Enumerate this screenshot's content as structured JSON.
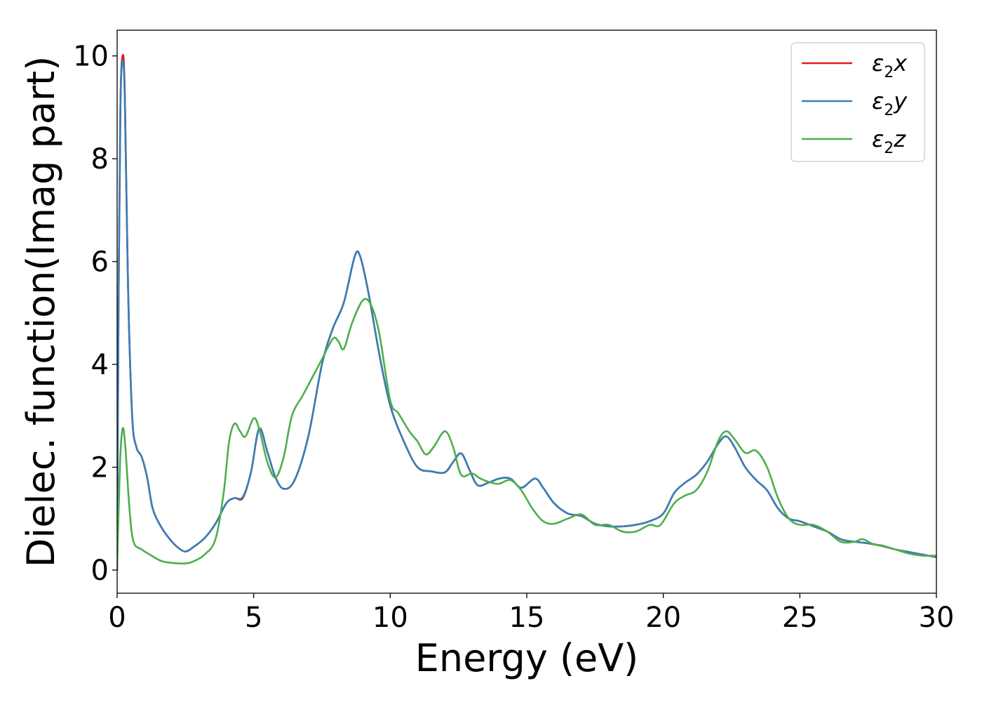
{
  "chart_data": {
    "type": "line",
    "title": "",
    "xlabel": "Energy (eV)",
    "ylabel": "Dielec. function(Imag part)",
    "xlim": [
      0,
      30
    ],
    "ylim": [
      -0.45,
      10.5
    ],
    "xticks": [
      0,
      5,
      10,
      15,
      20,
      25,
      30
    ],
    "yticks": [
      0,
      2,
      4,
      6,
      8,
      10
    ],
    "grid": false,
    "legend_position": "top-right",
    "series": [
      {
        "name": "ε₂x",
        "legend_base": "ε",
        "legend_sub": "2",
        "legend_suffix": "x",
        "color": "#e41a1c",
        "points": [
          [
            0,
            0
          ],
          [
            0.05,
            5
          ],
          [
            0.12,
            9
          ],
          [
            0.2,
            10
          ],
          [
            0.28,
            9.3
          ],
          [
            0.4,
            5.5
          ],
          [
            0.55,
            3.0
          ],
          [
            0.7,
            2.4
          ],
          [
            0.9,
            2.2
          ],
          [
            1.1,
            1.8
          ],
          [
            1.3,
            1.2
          ],
          [
            1.6,
            0.85
          ],
          [
            1.9,
            0.62
          ],
          [
            2.2,
            0.45
          ],
          [
            2.5,
            0.36
          ],
          [
            2.8,
            0.45
          ],
          [
            3.2,
            0.62
          ],
          [
            3.6,
            0.9
          ],
          [
            4.0,
            1.3
          ],
          [
            4.3,
            1.4
          ],
          [
            4.6,
            1.4
          ],
          [
            4.9,
            1.9
          ],
          [
            5.2,
            2.75
          ],
          [
            5.5,
            2.3
          ],
          [
            5.8,
            1.8
          ],
          [
            6.1,
            1.58
          ],
          [
            6.5,
            1.75
          ],
          [
            7.0,
            2.6
          ],
          [
            7.5,
            4.0
          ],
          [
            7.9,
            4.7
          ],
          [
            8.3,
            5.2
          ],
          [
            8.7,
            6.1
          ],
          [
            8.9,
            6.1
          ],
          [
            9.2,
            5.4
          ],
          [
            9.6,
            4.2
          ],
          [
            10.0,
            3.2
          ],
          [
            10.5,
            2.5
          ],
          [
            11.0,
            2.0
          ],
          [
            11.5,
            1.92
          ],
          [
            12.0,
            1.9
          ],
          [
            12.3,
            2.1
          ],
          [
            12.6,
            2.27
          ],
          [
            12.9,
            1.95
          ],
          [
            13.2,
            1.65
          ],
          [
            13.6,
            1.7
          ],
          [
            14.0,
            1.78
          ],
          [
            14.4,
            1.78
          ],
          [
            14.8,
            1.6
          ],
          [
            15.3,
            1.78
          ],
          [
            15.6,
            1.6
          ],
          [
            16.0,
            1.3
          ],
          [
            16.5,
            1.1
          ],
          [
            17.0,
            1.05
          ],
          [
            17.5,
            0.9
          ],
          [
            18.0,
            0.85
          ],
          [
            18.5,
            0.85
          ],
          [
            19.0,
            0.88
          ],
          [
            19.5,
            0.95
          ],
          [
            20.0,
            1.1
          ],
          [
            20.4,
            1.5
          ],
          [
            20.8,
            1.7
          ],
          [
            21.2,
            1.85
          ],
          [
            21.6,
            2.1
          ],
          [
            22.0,
            2.45
          ],
          [
            22.3,
            2.6
          ],
          [
            22.6,
            2.4
          ],
          [
            23.0,
            2.0
          ],
          [
            23.4,
            1.75
          ],
          [
            23.8,
            1.55
          ],
          [
            24.2,
            1.2
          ],
          [
            24.6,
            1.0
          ],
          [
            25.0,
            0.95
          ],
          [
            25.5,
            0.85
          ],
          [
            26.0,
            0.75
          ],
          [
            26.5,
            0.6
          ],
          [
            27.0,
            0.55
          ],
          [
            27.5,
            0.52
          ],
          [
            28.0,
            0.47
          ],
          [
            28.5,
            0.4
          ],
          [
            29.0,
            0.35
          ],
          [
            29.5,
            0.3
          ],
          [
            30.0,
            0.25
          ]
        ]
      },
      {
        "name": "ε₂y",
        "legend_base": "ε",
        "legend_sub": "2",
        "legend_suffix": "y",
        "color": "#377eb8",
        "points": [
          [
            0,
            0
          ],
          [
            0.05,
            5
          ],
          [
            0.12,
            9
          ],
          [
            0.2,
            9.9
          ],
          [
            0.28,
            9.2
          ],
          [
            0.4,
            5.5
          ],
          [
            0.55,
            3.0
          ],
          [
            0.7,
            2.4
          ],
          [
            0.9,
            2.2
          ],
          [
            1.1,
            1.8
          ],
          [
            1.3,
            1.2
          ],
          [
            1.6,
            0.85
          ],
          [
            1.9,
            0.62
          ],
          [
            2.2,
            0.45
          ],
          [
            2.5,
            0.36
          ],
          [
            2.8,
            0.45
          ],
          [
            3.2,
            0.62
          ],
          [
            3.6,
            0.9
          ],
          [
            4.0,
            1.3
          ],
          [
            4.3,
            1.4
          ],
          [
            4.6,
            1.42
          ],
          [
            4.9,
            1.9
          ],
          [
            5.2,
            2.75
          ],
          [
            5.5,
            2.3
          ],
          [
            5.8,
            1.8
          ],
          [
            6.1,
            1.58
          ],
          [
            6.5,
            1.75
          ],
          [
            7.0,
            2.6
          ],
          [
            7.5,
            4.0
          ],
          [
            7.9,
            4.7
          ],
          [
            8.3,
            5.2
          ],
          [
            8.7,
            6.1
          ],
          [
            8.9,
            6.1
          ],
          [
            9.2,
            5.4
          ],
          [
            9.6,
            4.2
          ],
          [
            10.0,
            3.2
          ],
          [
            10.5,
            2.5
          ],
          [
            11.0,
            2.0
          ],
          [
            11.5,
            1.92
          ],
          [
            12.0,
            1.9
          ],
          [
            12.3,
            2.1
          ],
          [
            12.6,
            2.27
          ],
          [
            12.9,
            1.95
          ],
          [
            13.2,
            1.65
          ],
          [
            13.6,
            1.7
          ],
          [
            14.0,
            1.78
          ],
          [
            14.4,
            1.78
          ],
          [
            14.8,
            1.6
          ],
          [
            15.3,
            1.78
          ],
          [
            15.6,
            1.6
          ],
          [
            16.0,
            1.3
          ],
          [
            16.5,
            1.1
          ],
          [
            17.0,
            1.05
          ],
          [
            17.5,
            0.9
          ],
          [
            18.0,
            0.85
          ],
          [
            18.5,
            0.85
          ],
          [
            19.0,
            0.88
          ],
          [
            19.5,
            0.95
          ],
          [
            20.0,
            1.1
          ],
          [
            20.4,
            1.5
          ],
          [
            20.8,
            1.7
          ],
          [
            21.2,
            1.85
          ],
          [
            21.6,
            2.1
          ],
          [
            22.0,
            2.45
          ],
          [
            22.3,
            2.6
          ],
          [
            22.6,
            2.4
          ],
          [
            23.0,
            2.0
          ],
          [
            23.4,
            1.75
          ],
          [
            23.8,
            1.55
          ],
          [
            24.2,
            1.2
          ],
          [
            24.6,
            1.0
          ],
          [
            25.0,
            0.95
          ],
          [
            25.5,
            0.85
          ],
          [
            26.0,
            0.75
          ],
          [
            26.5,
            0.6
          ],
          [
            27.0,
            0.55
          ],
          [
            27.5,
            0.52
          ],
          [
            28.0,
            0.47
          ],
          [
            28.5,
            0.4
          ],
          [
            29.0,
            0.35
          ],
          [
            29.5,
            0.3
          ],
          [
            30.0,
            0.25
          ]
        ]
      },
      {
        "name": "ε₂z",
        "legend_base": "ε",
        "legend_sub": "2",
        "legend_suffix": "z",
        "color": "#4daf4a",
        "points": [
          [
            0,
            0
          ],
          [
            0.1,
            2.0
          ],
          [
            0.2,
            2.75
          ],
          [
            0.3,
            2.4
          ],
          [
            0.45,
            1.2
          ],
          [
            0.6,
            0.55
          ],
          [
            0.9,
            0.4
          ],
          [
            1.2,
            0.3
          ],
          [
            1.6,
            0.18
          ],
          [
            2.0,
            0.14
          ],
          [
            2.5,
            0.13
          ],
          [
            2.8,
            0.17
          ],
          [
            3.2,
            0.3
          ],
          [
            3.6,
            0.6
          ],
          [
            3.9,
            1.5
          ],
          [
            4.1,
            2.5
          ],
          [
            4.3,
            2.85
          ],
          [
            4.5,
            2.7
          ],
          [
            4.7,
            2.6
          ],
          [
            5.0,
            2.95
          ],
          [
            5.2,
            2.75
          ],
          [
            5.5,
            2.1
          ],
          [
            5.8,
            1.8
          ],
          [
            6.1,
            2.2
          ],
          [
            6.4,
            3.0
          ],
          [
            6.8,
            3.4
          ],
          [
            7.2,
            3.8
          ],
          [
            7.5,
            4.1
          ],
          [
            7.9,
            4.5
          ],
          [
            8.1,
            4.45
          ],
          [
            8.3,
            4.3
          ],
          [
            8.6,
            4.8
          ],
          [
            9.0,
            5.25
          ],
          [
            9.3,
            5.15
          ],
          [
            9.6,
            4.6
          ],
          [
            10.0,
            3.3
          ],
          [
            10.3,
            3.05
          ],
          [
            10.7,
            2.7
          ],
          [
            11.0,
            2.5
          ],
          [
            11.3,
            2.25
          ],
          [
            11.6,
            2.4
          ],
          [
            12.0,
            2.7
          ],
          [
            12.3,
            2.4
          ],
          [
            12.6,
            1.85
          ],
          [
            13.0,
            1.88
          ],
          [
            13.3,
            1.78
          ],
          [
            13.7,
            1.7
          ],
          [
            14.0,
            1.68
          ],
          [
            14.4,
            1.75
          ],
          [
            14.8,
            1.55
          ],
          [
            15.2,
            1.2
          ],
          [
            15.6,
            0.95
          ],
          [
            16.0,
            0.9
          ],
          [
            16.5,
            1.0
          ],
          [
            17.0,
            1.08
          ],
          [
            17.5,
            0.88
          ],
          [
            18.0,
            0.88
          ],
          [
            18.5,
            0.75
          ],
          [
            19.0,
            0.75
          ],
          [
            19.5,
            0.88
          ],
          [
            19.8,
            0.85
          ],
          [
            20.0,
            0.95
          ],
          [
            20.4,
            1.3
          ],
          [
            20.8,
            1.45
          ],
          [
            21.2,
            1.55
          ],
          [
            21.6,
            1.9
          ],
          [
            22.0,
            2.5
          ],
          [
            22.3,
            2.7
          ],
          [
            22.6,
            2.55
          ],
          [
            23.0,
            2.28
          ],
          [
            23.4,
            2.32
          ],
          [
            23.8,
            2.0
          ],
          [
            24.2,
            1.4
          ],
          [
            24.6,
            1.0
          ],
          [
            25.0,
            0.88
          ],
          [
            25.5,
            0.88
          ],
          [
            26.0,
            0.75
          ],
          [
            26.5,
            0.55
          ],
          [
            27.0,
            0.55
          ],
          [
            27.3,
            0.6
          ],
          [
            27.7,
            0.5
          ],
          [
            28.0,
            0.48
          ],
          [
            28.5,
            0.4
          ],
          [
            29.0,
            0.32
          ],
          [
            29.5,
            0.28
          ],
          [
            30.0,
            0.28
          ]
        ]
      }
    ]
  }
}
